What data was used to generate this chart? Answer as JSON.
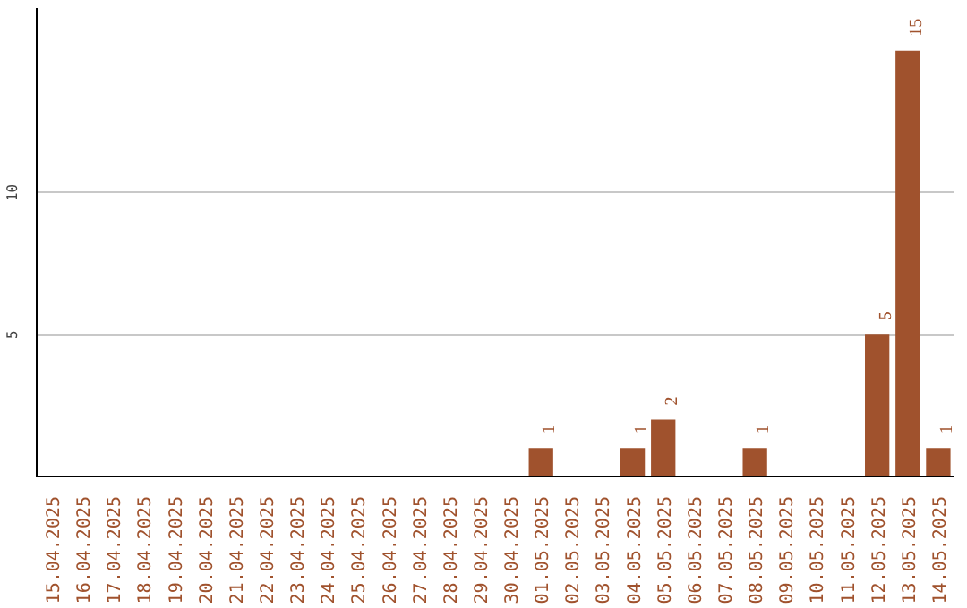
{
  "chart_data": {
    "type": "bar",
    "categories": [
      "15.04.2025",
      "16.04.2025",
      "17.04.2025",
      "18.04.2025",
      "19.04.2025",
      "20.04.2025",
      "21.04.2025",
      "22.04.2025",
      "23.04.2025",
      "24.04.2025",
      "25.04.2025",
      "26.04.2025",
      "27.04.2025",
      "28.04.2025",
      "29.04.2025",
      "30.04.2025",
      "01.05.2025",
      "02.05.2025",
      "03.05.2025",
      "04.05.2025",
      "05.05.2025",
      "06.05.2025",
      "07.05.2025",
      "08.05.2025",
      "09.05.2025",
      "10.05.2025",
      "11.05.2025",
      "12.05.2025",
      "13.05.2025",
      "14.05.2025"
    ],
    "values": [
      0,
      0,
      0,
      0,
      0,
      0,
      0,
      0,
      0,
      0,
      0,
      0,
      0,
      0,
      0,
      0,
      1,
      0,
      0,
      1,
      2,
      0,
      0,
      1,
      0,
      0,
      0,
      5,
      15,
      1
    ],
    "value_labels": [
      null,
      null,
      null,
      null,
      null,
      null,
      null,
      null,
      null,
      null,
      null,
      null,
      null,
      null,
      null,
      null,
      "1",
      null,
      null,
      "1",
      "2",
      null,
      null,
      "1",
      null,
      null,
      null,
      "5",
      "15",
      "1"
    ],
    "color": "#a0522d",
    "ylim": [
      0,
      16.5
    ],
    "yticks": [
      5,
      10
    ],
    "grid": "y"
  }
}
